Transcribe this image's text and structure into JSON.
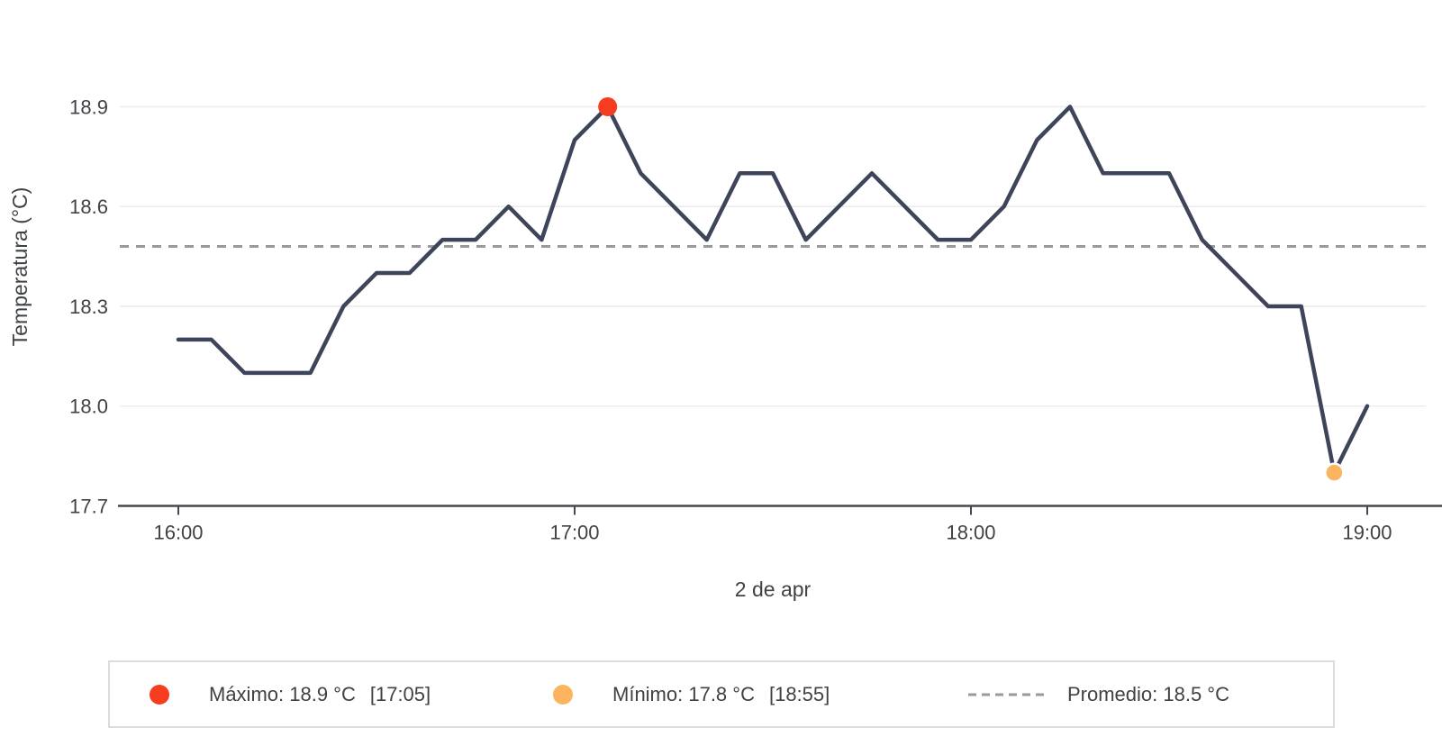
{
  "chart_data": {
    "type": "line",
    "title": "",
    "xlabel": "2 de apr",
    "ylabel": "Temperatura (°C)",
    "grid": true,
    "legend_position": "bottom",
    "ylim": [
      17.7,
      19.0
    ],
    "y_ticks": [
      17.7,
      18.0,
      18.3,
      18.6,
      18.9
    ],
    "x_tick_labels": [
      "16:00",
      "17:00",
      "18:00",
      "19:00"
    ],
    "x_tick_minutes": [
      0,
      60,
      120,
      180
    ],
    "x": [
      "16:00",
      "16:05",
      "16:10",
      "16:15",
      "16:20",
      "16:25",
      "16:30",
      "16:35",
      "16:40",
      "16:45",
      "16:50",
      "16:55",
      "17:00",
      "17:05",
      "17:10",
      "17:15",
      "17:20",
      "17:25",
      "17:30",
      "17:35",
      "17:40",
      "17:45",
      "17:50",
      "17:55",
      "18:00",
      "18:05",
      "18:10",
      "18:15",
      "18:20",
      "18:25",
      "18:30",
      "18:35",
      "18:40",
      "18:45",
      "18:50",
      "18:55",
      "19:00"
    ],
    "values": [
      18.2,
      18.2,
      18.1,
      18.1,
      18.1,
      18.3,
      18.4,
      18.4,
      18.5,
      18.5,
      18.6,
      18.5,
      18.8,
      18.9,
      18.7,
      18.6,
      18.5,
      18.7,
      18.7,
      18.5,
      18.6,
      18.7,
      18.6,
      18.5,
      18.5,
      18.6,
      18.8,
      18.9,
      18.7,
      18.7,
      18.7,
      18.5,
      18.4,
      18.3,
      18.3,
      17.8,
      18.0
    ],
    "average": 18.48,
    "max": {
      "value": 18.9,
      "time": "17:05"
    },
    "min": {
      "value": 17.8,
      "time": "18:55"
    }
  },
  "legend": {
    "max_label": "Máximo: 18.9 °C",
    "max_time": "[17:05]",
    "min_label": "Mínimo: 17.8 °C",
    "min_time": "[18:55]",
    "avg_label": "Promedio: 18.5 °C"
  },
  "colors": {
    "line": "#3e455a",
    "max_dot": "#f63d1f",
    "min_dot": "#fbb55f",
    "average_line": "#999999",
    "grid": "#ececec",
    "axis": "#45484d",
    "text": "#3f4245",
    "legend_border": "#dcdcdc",
    "bg": "#ffffff"
  }
}
